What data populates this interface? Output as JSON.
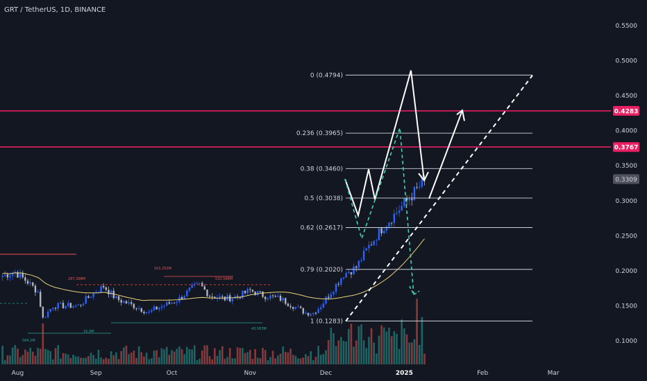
{
  "header": {
    "title": "GRT / TetherUS, 1D, BINANCE"
  },
  "chart_data": {
    "type": "candlestick",
    "symbol": "GRT / TetherUS",
    "interval": "1D",
    "exchange": "BINANCE",
    "x_ticks": [
      "Aug",
      "Sep",
      "Oct",
      "Nov",
      "Dec",
      "2025",
      "Feb",
      "Mar"
    ],
    "y_ticks": [
      "0.5500",
      "0.5000",
      "0.4500",
      "0.4000",
      "0.3500",
      "0.3000",
      "0.2500",
      "0.2000",
      "0.1500",
      "0.1000"
    ],
    "ylim": [
      0.075,
      0.575
    ],
    "current_price": "0.3309",
    "horizontal_levels": [
      {
        "label": "0.4283",
        "value": 0.4283,
        "color": "#e91e63"
      },
      {
        "label": "0.3767",
        "value": 0.3767,
        "color": "#e91e63"
      }
    ],
    "fibonacci": [
      {
        "label": "0 (0.4794)",
        "value": 0.4794
      },
      {
        "label": "0.236 (0.3965)",
        "value": 0.3965
      },
      {
        "label": "0.38 (0.3460)",
        "value": 0.346
      },
      {
        "label": "0.5 (0.3038)",
        "value": 0.3038
      },
      {
        "label": "0.62 (0.2617)",
        "value": 0.2617
      },
      {
        "label": "0.79 (0.2020)",
        "value": 0.202
      },
      {
        "label": "1 (0.1283)",
        "value": 0.1283
      }
    ],
    "volume_labels": [
      {
        "text": "297.398M",
        "color": "#ef5350"
      },
      {
        "text": "101.252M",
        "color": "#ef5350"
      },
      {
        "text": "532.568M",
        "color": "#ef5350"
      },
      {
        "text": "16.0M",
        "color": "#26a69a"
      },
      {
        "text": "43.583M",
        "color": "#26a69a"
      },
      {
        "text": "584.2M",
        "color": "#26a69a"
      }
    ],
    "colors": {
      "background": "#131722",
      "up_candle": "#2962ff",
      "down_candle": "#b2b5be",
      "moving_average": "#e8d47a",
      "volume_up": "#26a69a",
      "volume_down": "#ef5350",
      "projection_white": "#ffffff",
      "projection_cyan": "#3fd2b4"
    }
  }
}
